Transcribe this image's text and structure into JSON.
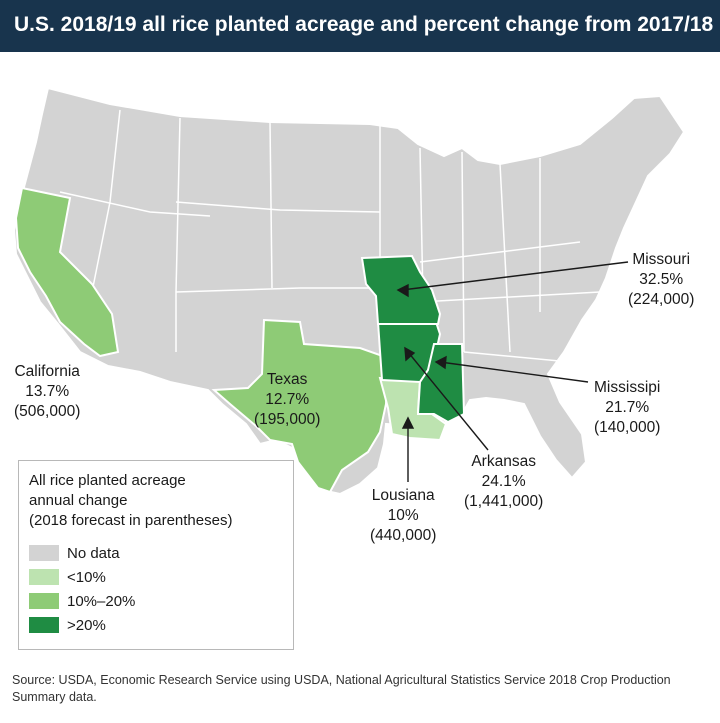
{
  "title": "U.S. 2018/19 all rice planted acreage and percent change from 2017/18",
  "colors": {
    "title_bg": "#18344d",
    "no_data": "#d3d3d3",
    "lt10": "#bde3b0",
    "10to20": "#8ecb76",
    "gt20": "#1f8c43",
    "border": "#ffffff"
  },
  "states": [
    {
      "name": "California",
      "pct": "13.7%",
      "acres": "(506,000)",
      "category": "10%–20%"
    },
    {
      "name": "Texas",
      "pct": "12.7%",
      "acres": "(195,000)",
      "category": "10%–20%"
    },
    {
      "name": "Lousiana",
      "pct": "10%",
      "acres": "(440,000)",
      "category": "<10%"
    },
    {
      "name": "Arkansas",
      "pct": "24.1%",
      "acres": "(1,441,000)",
      "category": ">20%"
    },
    {
      "name": "Mississipi",
      "pct": "21.7%",
      "acres": "(140,000)",
      "category": ">20%"
    },
    {
      "name": "Missouri",
      "pct": "32.5%",
      "acres": "(224,000)",
      "category": ">20%"
    }
  ],
  "legend": {
    "title_line1": "All rice planted acreage",
    "title_line2": "annual change",
    "title_line3": "(2018 forecast in parentheses)",
    "items": [
      {
        "label": "No data",
        "color": "#d3d3d3"
      },
      {
        "label": "<10%",
        "color": "#bde3b0"
      },
      {
        "label": "10%–20%",
        "color": "#8ecb76"
      },
      {
        "label": ">20%",
        "color": "#1f8c43"
      }
    ]
  },
  "source": "Source: USDA, Economic Research Service using USDA, National Agricultural Statistics Service 2018 Crop Production Summary data."
}
